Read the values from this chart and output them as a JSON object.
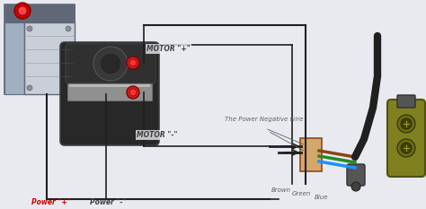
{
  "bg_color": "#e8eaf0",
  "labels": {
    "motor_pos1": "MOTOR \"+\"",
    "motor_neg1": "MOTOR \"-\"",
    "power_pos": "Power \"+\"",
    "power_neg": "Power \"-\"",
    "brown": "Brown",
    "green": "Green",
    "blue": "Blue",
    "neg_wire": "The Power Negative wire"
  },
  "colors": {
    "bg_color": "#e8eaf0",
    "pump_body": "#b0b8c8",
    "pump_dark": "#606878",
    "pump_light": "#c8cfd8",
    "motor_body": "#282828",
    "motor_chrome": "#909090",
    "motor_red": "#cc2020",
    "reservoir_body": "#c8d0d8",
    "red_cap": "#cc0000",
    "wire_black": "#202020",
    "wire_brown": "#8B4513",
    "wire_green": "#228B22",
    "wire_blue": "#1E90FF",
    "remote_body": "#808020",
    "label_red": "#cc0000",
    "label_dark": "#404040",
    "label_gray": "#606060"
  }
}
